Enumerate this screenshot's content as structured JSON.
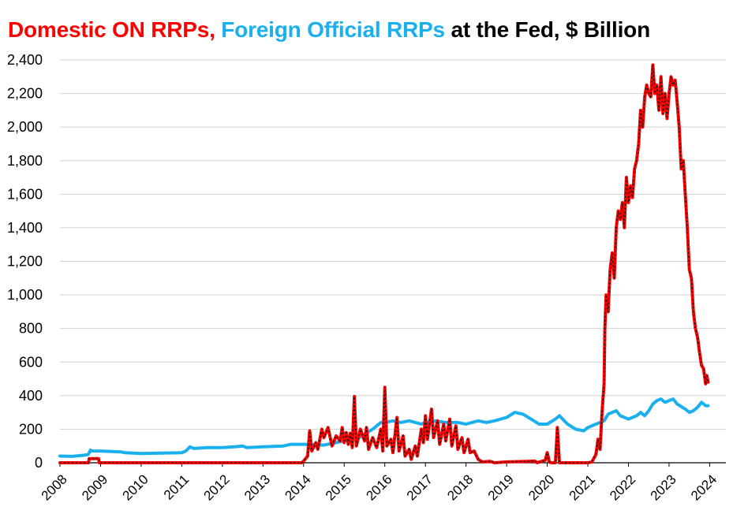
{
  "chart_data": {
    "type": "line",
    "title_parts": [
      {
        "text": "Domestic ON RRPs,",
        "color": "#ff0000"
      },
      {
        "text": "Foreign Official RRPs",
        "color": "#1ab0ee"
      },
      {
        "text": "at the Fed, $ Billion",
        "color": "#000000"
      }
    ],
    "xlabel": "",
    "ylabel": "",
    "xlim": [
      2008.0,
      2024.4
    ],
    "ylim": [
      0,
      2400
    ],
    "yticks": [
      0,
      200,
      400,
      600,
      800,
      1000,
      1200,
      1400,
      1600,
      1800,
      2000,
      2200,
      2400
    ],
    "ytick_labels": [
      "0",
      "200",
      "400",
      "600",
      "800",
      "1,000",
      "1,200",
      "1,400",
      "1,600",
      "1,800",
      "2,000",
      "2,200",
      "2,400"
    ],
    "xticks": [
      2008,
      2009,
      2010,
      2011,
      2012,
      2013,
      2014,
      2015,
      2016,
      2017,
      2018,
      2019,
      2020,
      2021,
      2022,
      2023,
      2024
    ],
    "xtick_labels": [
      "2008",
      "2009",
      "2010",
      "2011",
      "2012",
      "2013",
      "2014",
      "2015",
      "2016",
      "2017",
      "2018",
      "2019",
      "2020",
      "2021",
      "2022",
      "2023",
      "2024"
    ],
    "grid": true,
    "legend": "none",
    "series": [
      {
        "color": "#ff0000",
        "points": [
          [
            2008.0,
            0
          ],
          [
            2008.7,
            0
          ],
          [
            2008.72,
            25
          ],
          [
            2008.95,
            25
          ],
          [
            2008.97,
            0
          ],
          [
            2013.95,
            0
          ],
          [
            2014.0,
            10
          ],
          [
            2014.1,
            40
          ],
          [
            2014.15,
            190
          ],
          [
            2014.2,
            70
          ],
          [
            2014.3,
            120
          ],
          [
            2014.35,
            80
          ],
          [
            2014.45,
            200
          ],
          [
            2014.5,
            150
          ],
          [
            2014.6,
            210
          ],
          [
            2014.7,
            100
          ],
          [
            2014.8,
            160
          ],
          [
            2014.9,
            130
          ],
          [
            2014.95,
            210
          ],
          [
            2015.0,
            120
          ],
          [
            2015.05,
            180
          ],
          [
            2015.1,
            110
          ],
          [
            2015.15,
            175
          ],
          [
            2015.2,
            90
          ],
          [
            2015.25,
            395
          ],
          [
            2015.3,
            100
          ],
          [
            2015.4,
            200
          ],
          [
            2015.5,
            130
          ],
          [
            2015.55,
            210
          ],
          [
            2015.6,
            80
          ],
          [
            2015.7,
            150
          ],
          [
            2015.8,
            90
          ],
          [
            2015.9,
            200
          ],
          [
            2015.95,
            70
          ],
          [
            2016.0,
            450
          ],
          [
            2016.05,
            100
          ],
          [
            2016.15,
            140
          ],
          [
            2016.2,
            60
          ],
          [
            2016.3,
            270
          ],
          [
            2016.35,
            70
          ],
          [
            2016.45,
            160
          ],
          [
            2016.5,
            40
          ],
          [
            2016.6,
            80
          ],
          [
            2016.65,
            20
          ],
          [
            2016.75,
            100
          ],
          [
            2016.8,
            40
          ],
          [
            2016.9,
            200
          ],
          [
            2016.95,
            120
          ],
          [
            2017.0,
            280
          ],
          [
            2017.05,
            140
          ],
          [
            2017.15,
            320
          ],
          [
            2017.2,
            150
          ],
          [
            2017.3,
            250
          ],
          [
            2017.35,
            110
          ],
          [
            2017.45,
            230
          ],
          [
            2017.5,
            130
          ],
          [
            2017.6,
            260
          ],
          [
            2017.65,
            100
          ],
          [
            2017.75,
            220
          ],
          [
            2017.8,
            80
          ],
          [
            2017.9,
            150
          ],
          [
            2017.95,
            60
          ],
          [
            2018.05,
            140
          ],
          [
            2018.1,
            60
          ],
          [
            2018.2,
            70
          ],
          [
            2018.3,
            20
          ],
          [
            2018.4,
            5
          ],
          [
            2018.6,
            8
          ],
          [
            2018.7,
            0
          ],
          [
            2019.0,
            5
          ],
          [
            2019.5,
            8
          ],
          [
            2019.7,
            10
          ],
          [
            2019.75,
            0
          ],
          [
            2019.95,
            15
          ],
          [
            2020.0,
            60
          ],
          [
            2020.05,
            5
          ],
          [
            2020.1,
            0
          ],
          [
            2020.2,
            0
          ],
          [
            2020.25,
            210
          ],
          [
            2020.3,
            0
          ],
          [
            2021.0,
            0
          ],
          [
            2021.1,
            5
          ],
          [
            2021.2,
            50
          ],
          [
            2021.25,
            140
          ],
          [
            2021.3,
            80
          ],
          [
            2021.35,
            300
          ],
          [
            2021.4,
            470
          ],
          [
            2021.42,
            800
          ],
          [
            2021.45,
            1000
          ],
          [
            2021.5,
            900
          ],
          [
            2021.55,
            1150
          ],
          [
            2021.6,
            1250
          ],
          [
            2021.65,
            1100
          ],
          [
            2021.7,
            1400
          ],
          [
            2021.75,
            1500
          ],
          [
            2021.8,
            1450
          ],
          [
            2021.85,
            1550
          ],
          [
            2021.9,
            1400
          ],
          [
            2021.95,
            1700
          ],
          [
            2022.0,
            1550
          ],
          [
            2022.05,
            1650
          ],
          [
            2022.1,
            1580
          ],
          [
            2022.15,
            1750
          ],
          [
            2022.2,
            1800
          ],
          [
            2022.25,
            1900
          ],
          [
            2022.3,
            2100
          ],
          [
            2022.35,
            2000
          ],
          [
            2022.4,
            2180
          ],
          [
            2022.45,
            2250
          ],
          [
            2022.5,
            2200
          ],
          [
            2022.55,
            2180
          ],
          [
            2022.6,
            2370
          ],
          [
            2022.65,
            2200
          ],
          [
            2022.7,
            2250
          ],
          [
            2022.75,
            2100
          ],
          [
            2022.8,
            2300
          ],
          [
            2022.85,
            2080
          ],
          [
            2022.9,
            2200
          ],
          [
            2022.95,
            2050
          ],
          [
            2023.0,
            2200
          ],
          [
            2023.05,
            2300
          ],
          [
            2023.1,
            2250
          ],
          [
            2023.15,
            2280
          ],
          [
            2023.2,
            2150
          ],
          [
            2023.25,
            2000
          ],
          [
            2023.3,
            1750
          ],
          [
            2023.35,
            1800
          ],
          [
            2023.4,
            1600
          ],
          [
            2023.45,
            1400
          ],
          [
            2023.5,
            1150
          ],
          [
            2023.55,
            1100
          ],
          [
            2023.6,
            900
          ],
          [
            2023.65,
            800
          ],
          [
            2023.7,
            750
          ],
          [
            2023.75,
            660
          ],
          [
            2023.8,
            580
          ],
          [
            2023.85,
            560
          ],
          [
            2023.9,
            470
          ],
          [
            2023.93,
            520
          ],
          [
            2023.96,
            480
          ]
        ]
      },
      {
        "color": "#1ab0ee",
        "points": [
          [
            2008.0,
            40
          ],
          [
            2008.3,
            38
          ],
          [
            2008.6,
            45
          ],
          [
            2008.7,
            50
          ],
          [
            2008.75,
            75
          ],
          [
            2008.8,
            70
          ],
          [
            2009.0,
            70
          ],
          [
            2009.5,
            65
          ],
          [
            2009.6,
            60
          ],
          [
            2010.0,
            55
          ],
          [
            2010.5,
            58
          ],
          [
            2011.0,
            60
          ],
          [
            2011.1,
            70
          ],
          [
            2011.2,
            95
          ],
          [
            2011.3,
            85
          ],
          [
            2011.6,
            90
          ],
          [
            2012.0,
            90
          ],
          [
            2012.3,
            95
          ],
          [
            2012.5,
            100
          ],
          [
            2012.6,
            90
          ],
          [
            2013.0,
            95
          ],
          [
            2013.5,
            100
          ],
          [
            2013.7,
            110
          ],
          [
            2014.0,
            110
          ],
          [
            2014.5,
            105
          ],
          [
            2014.7,
            115
          ],
          [
            2015.0,
            130
          ],
          [
            2015.3,
            140
          ],
          [
            2015.5,
            170
          ],
          [
            2015.7,
            200
          ],
          [
            2015.9,
            240
          ],
          [
            2016.0,
            240
          ],
          [
            2016.2,
            250
          ],
          [
            2016.4,
            240
          ],
          [
            2016.6,
            250
          ],
          [
            2016.9,
            230
          ],
          [
            2017.0,
            240
          ],
          [
            2017.2,
            250
          ],
          [
            2017.5,
            240
          ],
          [
            2017.8,
            240
          ],
          [
            2018.0,
            230
          ],
          [
            2018.3,
            250
          ],
          [
            2018.5,
            240
          ],
          [
            2018.7,
            250
          ],
          [
            2019.0,
            270
          ],
          [
            2019.2,
            300
          ],
          [
            2019.4,
            290
          ],
          [
            2019.6,
            260
          ],
          [
            2019.8,
            230
          ],
          [
            2020.0,
            230
          ],
          [
            2020.2,
            260
          ],
          [
            2020.3,
            280
          ],
          [
            2020.5,
            230
          ],
          [
            2020.7,
            200
          ],
          [
            2020.9,
            190
          ],
          [
            2021.0,
            210
          ],
          [
            2021.2,
            230
          ],
          [
            2021.4,
            250
          ],
          [
            2021.5,
            290
          ],
          [
            2021.7,
            310
          ],
          [
            2021.8,
            280
          ],
          [
            2022.0,
            260
          ],
          [
            2022.2,
            280
          ],
          [
            2022.3,
            300
          ],
          [
            2022.4,
            280
          ],
          [
            2022.5,
            310
          ],
          [
            2022.6,
            350
          ],
          [
            2022.7,
            370
          ],
          [
            2022.8,
            380
          ],
          [
            2022.9,
            360
          ],
          [
            2023.0,
            370
          ],
          [
            2023.1,
            380
          ],
          [
            2023.2,
            350
          ],
          [
            2023.4,
            320
          ],
          [
            2023.5,
            300
          ],
          [
            2023.6,
            310
          ],
          [
            2023.7,
            330
          ],
          [
            2023.8,
            360
          ],
          [
            2023.9,
            340
          ],
          [
            2023.96,
            340
          ]
        ]
      }
    ]
  }
}
